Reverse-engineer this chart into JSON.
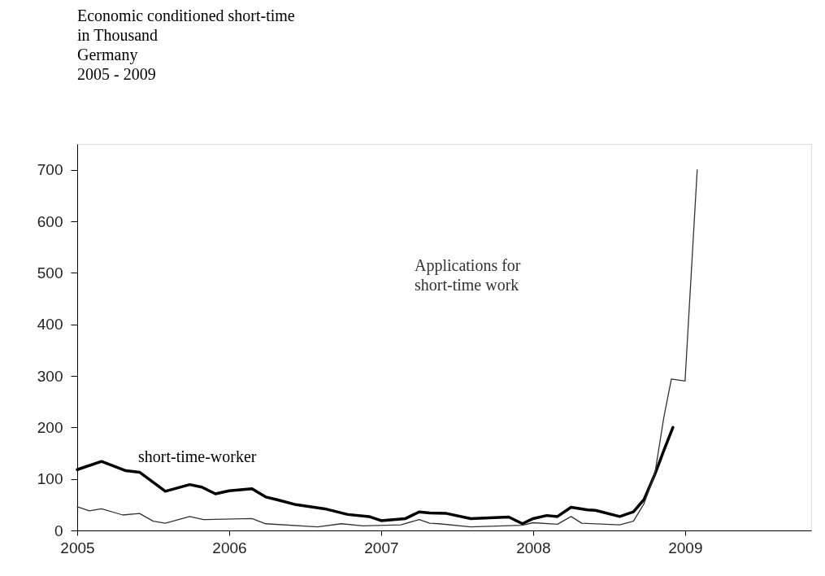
{
  "chart_data": {
    "type": "line",
    "title": "Economic conditioned short-time\nin Thousand\nGermany\n2005 - 2009",
    "xlim": [
      2005,
      2009.83
    ],
    "xticks": [
      2005,
      2006,
      2007,
      2008,
      2009
    ],
    "ylim": [
      0,
      750
    ],
    "yticks": [
      0,
      100,
      200,
      300,
      400,
      500,
      600,
      700
    ],
    "grid": false,
    "marker": "none",
    "line_style": "solid",
    "series": [
      {
        "name": "short-time-worker",
        "color": "#000000",
        "x": [
          2005.0,
          2005.16,
          2005.32,
          2005.41,
          2005.58,
          2005.74,
          2005.82,
          2005.91,
          2006.0,
          2006.15,
          2006.24,
          2006.31,
          2006.44,
          2006.63,
          2006.78,
          2006.92,
          2007.0,
          2007.16,
          2007.25,
          2007.32,
          2007.43,
          2007.59,
          2007.84,
          2007.93,
          2008.0,
          2008.09,
          2008.16,
          2008.25,
          2008.36,
          2008.41,
          2008.57,
          2008.66,
          2008.73,
          2008.8,
          2008.86,
          2008.92
        ],
        "values": [
          118,
          134,
          116,
          113,
          76,
          89,
          84,
          71,
          77,
          81,
          65,
          60,
          50,
          42,
          31,
          27,
          19,
          23,
          36,
          34,
          33,
          23,
          26,
          13,
          23,
          29,
          27,
          45,
          40,
          39,
          27,
          36,
          60,
          108,
          155,
          200
        ]
      },
      {
        "name": "Applications for\nshort-time work",
        "color": "#333333",
        "x": [
          2005.0,
          2005.08,
          2005.16,
          2005.3,
          2005.41,
          2005.5,
          2005.58,
          2005.74,
          2005.83,
          2006.15,
          2006.24,
          2006.58,
          2006.74,
          2006.88,
          2007.13,
          2007.25,
          2007.32,
          2007.38,
          2007.59,
          2007.93,
          2008.0,
          2008.16,
          2008.25,
          2008.32,
          2008.57,
          2008.66,
          2008.73,
          2008.8,
          2008.86,
          2008.91,
          2009.0,
          2009.08
        ],
        "values": [
          46,
          38,
          42,
          30,
          33,
          18,
          14,
          27,
          21,
          23,
          13,
          7,
          13,
          9,
          11,
          21,
          14,
          13,
          7,
          10,
          15,
          12,
          27,
          14,
          11,
          18,
          52,
          108,
          219,
          294,
          290,
          700
        ]
      }
    ]
  }
}
